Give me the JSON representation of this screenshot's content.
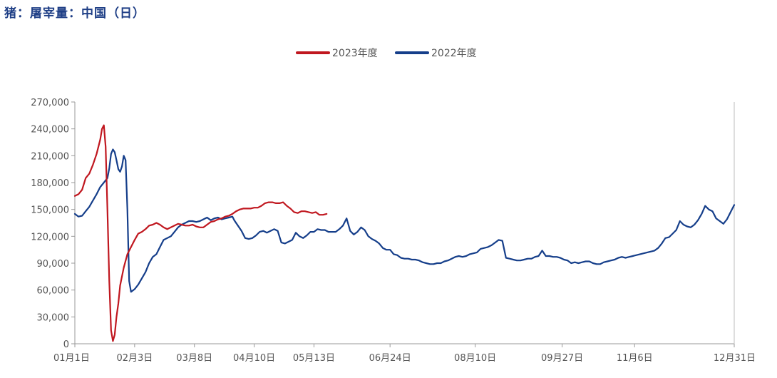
{
  "title": "猪：屠宰量：中国（日）",
  "chart_data": {
    "type": "line",
    "title": "猪：屠宰量：中国（日）",
    "ylim": [
      0,
      270000
    ],
    "y_ticks": [
      "0",
      "30,000",
      "60,000",
      "90,000",
      "120,000",
      "150,000",
      "180,000",
      "210,000",
      "240,000",
      "270,000"
    ],
    "y_tick_values": [
      0,
      30000,
      60000,
      90000,
      120000,
      150000,
      180000,
      210000,
      240000,
      270000
    ],
    "x_ticks": [
      {
        "label": "01月1日",
        "day": 0
      },
      {
        "label": "02月3日",
        "day": 33
      },
      {
        "label": "03月8日",
        "day": 66
      },
      {
        "label": "04月10日",
        "day": 99
      },
      {
        "label": "05月13日",
        "day": 132
      },
      {
        "label": "06月24日",
        "day": 174
      },
      {
        "label": "08月10日",
        "day": 221
      },
      {
        "label": "09月27日",
        "day": 269
      },
      {
        "label": "11月6日",
        "day": 309
      },
      {
        "label": "12月31日",
        "day": 364
      }
    ],
    "xlim": [
      0,
      364
    ],
    "legend_position": "top-center",
    "series": [
      {
        "name": "2023年度",
        "color": "#c0171f",
        "points": [
          [
            0,
            165000
          ],
          [
            2,
            167000
          ],
          [
            4,
            172000
          ],
          [
            6,
            185000
          ],
          [
            8,
            190000
          ],
          [
            10,
            200000
          ],
          [
            12,
            212000
          ],
          [
            14,
            228000
          ],
          [
            15,
            240000
          ],
          [
            16,
            244000
          ],
          [
            17,
            220000
          ],
          [
            18,
            150000
          ],
          [
            19,
            70000
          ],
          [
            20,
            15000
          ],
          [
            21,
            3000
          ],
          [
            22,
            10000
          ],
          [
            23,
            30000
          ],
          [
            24,
            45000
          ],
          [
            25,
            65000
          ],
          [
            27,
            85000
          ],
          [
            29,
            100000
          ],
          [
            31,
            108000
          ],
          [
            33,
            116000
          ],
          [
            35,
            123000
          ],
          [
            37,
            125000
          ],
          [
            39,
            128000
          ],
          [
            41,
            132000
          ],
          [
            43,
            133000
          ],
          [
            45,
            135000
          ],
          [
            47,
            133000
          ],
          [
            49,
            130000
          ],
          [
            51,
            128000
          ],
          [
            53,
            130000
          ],
          [
            55,
            132000
          ],
          [
            57,
            134000
          ],
          [
            59,
            133000
          ],
          [
            61,
            132000
          ],
          [
            63,
            132000
          ],
          [
            65,
            133000
          ],
          [
            67,
            131000
          ],
          [
            69,
            130000
          ],
          [
            71,
            130000
          ],
          [
            73,
            133000
          ],
          [
            75,
            136000
          ],
          [
            77,
            137000
          ],
          [
            79,
            139000
          ],
          [
            81,
            140000
          ],
          [
            83,
            142000
          ],
          [
            85,
            143000
          ],
          [
            87,
            145000
          ],
          [
            89,
            148000
          ],
          [
            91,
            150000
          ],
          [
            93,
            151000
          ],
          [
            95,
            151000
          ],
          [
            97,
            151000
          ],
          [
            99,
            152000
          ],
          [
            101,
            152000
          ],
          [
            103,
            154000
          ],
          [
            105,
            157000
          ],
          [
            107,
            158000
          ],
          [
            109,
            158000
          ],
          [
            111,
            157000
          ],
          [
            113,
            157000
          ],
          [
            115,
            158000
          ],
          [
            117,
            154000
          ],
          [
            119,
            151000
          ],
          [
            121,
            147000
          ],
          [
            123,
            146000
          ],
          [
            125,
            148000
          ],
          [
            127,
            148000
          ],
          [
            129,
            147000
          ],
          [
            131,
            146000
          ],
          [
            133,
            147000
          ],
          [
            135,
            144000
          ],
          [
            137,
            144000
          ],
          [
            139,
            145000
          ]
        ]
      },
      {
        "name": "2022年度",
        "color": "#153e8a",
        "points": [
          [
            0,
            145000
          ],
          [
            2,
            142000
          ],
          [
            4,
            143000
          ],
          [
            6,
            148000
          ],
          [
            8,
            153000
          ],
          [
            10,
            160000
          ],
          [
            12,
            167000
          ],
          [
            14,
            175000
          ],
          [
            16,
            180000
          ],
          [
            18,
            185000
          ],
          [
            19,
            196000
          ],
          [
            20,
            212000
          ],
          [
            21,
            217000
          ],
          [
            22,
            214000
          ],
          [
            23,
            205000
          ],
          [
            24,
            195000
          ],
          [
            25,
            192000
          ],
          [
            26,
            198000
          ],
          [
            27,
            210000
          ],
          [
            28,
            205000
          ],
          [
            29,
            150000
          ],
          [
            30,
            70000
          ],
          [
            31,
            58000
          ],
          [
            33,
            61000
          ],
          [
            35,
            66000
          ],
          [
            37,
            73000
          ],
          [
            39,
            80000
          ],
          [
            41,
            90000
          ],
          [
            43,
            97000
          ],
          [
            45,
            100000
          ],
          [
            47,
            108000
          ],
          [
            49,
            116000
          ],
          [
            51,
            118000
          ],
          [
            53,
            120000
          ],
          [
            55,
            125000
          ],
          [
            57,
            130000
          ],
          [
            59,
            133000
          ],
          [
            61,
            135000
          ],
          [
            63,
            137000
          ],
          [
            65,
            137000
          ],
          [
            67,
            136000
          ],
          [
            69,
            137000
          ],
          [
            71,
            139000
          ],
          [
            73,
            141000
          ],
          [
            75,
            138000
          ],
          [
            77,
            140000
          ],
          [
            79,
            141000
          ],
          [
            81,
            139000
          ],
          [
            83,
            140000
          ],
          [
            85,
            141000
          ],
          [
            87,
            142000
          ],
          [
            88,
            138000
          ],
          [
            90,
            132000
          ],
          [
            92,
            126000
          ],
          [
            94,
            118000
          ],
          [
            96,
            117000
          ],
          [
            98,
            118000
          ],
          [
            100,
            121000
          ],
          [
            102,
            125000
          ],
          [
            104,
            126000
          ],
          [
            106,
            124000
          ],
          [
            108,
            126000
          ],
          [
            110,
            128000
          ],
          [
            112,
            126000
          ],
          [
            114,
            113000
          ],
          [
            116,
            112000
          ],
          [
            118,
            114000
          ],
          [
            120,
            116000
          ],
          [
            122,
            124000
          ],
          [
            124,
            120000
          ],
          [
            126,
            118000
          ],
          [
            128,
            121000
          ],
          [
            130,
            125000
          ],
          [
            132,
            125000
          ],
          [
            134,
            128000
          ],
          [
            136,
            127000
          ],
          [
            138,
            127000
          ],
          [
            140,
            125000
          ],
          [
            142,
            125000
          ],
          [
            144,
            125000
          ],
          [
            146,
            128000
          ],
          [
            148,
            132000
          ],
          [
            150,
            140000
          ],
          [
            152,
            126000
          ],
          [
            154,
            122000
          ],
          [
            156,
            125000
          ],
          [
            158,
            130000
          ],
          [
            160,
            127000
          ],
          [
            162,
            120000
          ],
          [
            164,
            117000
          ],
          [
            166,
            115000
          ],
          [
            168,
            112000
          ],
          [
            170,
            107000
          ],
          [
            172,
            105000
          ],
          [
            174,
            105000
          ],
          [
            176,
            100000
          ],
          [
            178,
            99000
          ],
          [
            180,
            96000
          ],
          [
            182,
            95000
          ],
          [
            184,
            95000
          ],
          [
            186,
            94000
          ],
          [
            188,
            94000
          ],
          [
            190,
            93000
          ],
          [
            192,
            91000
          ],
          [
            194,
            90000
          ],
          [
            196,
            89000
          ],
          [
            198,
            89000
          ],
          [
            200,
            90000
          ],
          [
            202,
            90000
          ],
          [
            204,
            92000
          ],
          [
            206,
            93000
          ],
          [
            208,
            95000
          ],
          [
            210,
            97000
          ],
          [
            212,
            98000
          ],
          [
            214,
            97000
          ],
          [
            216,
            98000
          ],
          [
            218,
            100000
          ],
          [
            220,
            101000
          ],
          [
            222,
            102000
          ],
          [
            224,
            106000
          ],
          [
            226,
            107000
          ],
          [
            228,
            108000
          ],
          [
            230,
            110000
          ],
          [
            232,
            113000
          ],
          [
            234,
            116000
          ],
          [
            236,
            115000
          ],
          [
            238,
            96000
          ],
          [
            240,
            95000
          ],
          [
            242,
            94000
          ],
          [
            244,
            93000
          ],
          [
            246,
            93000
          ],
          [
            248,
            94000
          ],
          [
            250,
            95000
          ],
          [
            252,
            95000
          ],
          [
            254,
            97000
          ],
          [
            256,
            98000
          ],
          [
            258,
            104000
          ],
          [
            260,
            98000
          ],
          [
            262,
            98000
          ],
          [
            264,
            97000
          ],
          [
            266,
            97000
          ],
          [
            268,
            96000
          ],
          [
            270,
            94000
          ],
          [
            272,
            93000
          ],
          [
            274,
            90000
          ],
          [
            276,
            91000
          ],
          [
            278,
            90000
          ],
          [
            280,
            91000
          ],
          [
            282,
            92000
          ],
          [
            284,
            92000
          ],
          [
            286,
            90000
          ],
          [
            288,
            89000
          ],
          [
            290,
            89000
          ],
          [
            292,
            91000
          ],
          [
            294,
            92000
          ],
          [
            296,
            93000
          ],
          [
            298,
            94000
          ],
          [
            300,
            96000
          ],
          [
            302,
            97000
          ],
          [
            304,
            96000
          ],
          [
            306,
            97000
          ],
          [
            308,
            98000
          ],
          [
            310,
            99000
          ],
          [
            312,
            100000
          ],
          [
            314,
            101000
          ],
          [
            316,
            102000
          ],
          [
            318,
            103000
          ],
          [
            320,
            104000
          ],
          [
            322,
            107000
          ],
          [
            324,
            112000
          ],
          [
            326,
            118000
          ],
          [
            328,
            119000
          ],
          [
            330,
            123000
          ],
          [
            332,
            127000
          ],
          [
            334,
            137000
          ],
          [
            336,
            133000
          ],
          [
            338,
            131000
          ],
          [
            340,
            130000
          ],
          [
            342,
            133000
          ],
          [
            344,
            138000
          ],
          [
            346,
            145000
          ],
          [
            348,
            154000
          ],
          [
            350,
            150000
          ],
          [
            352,
            148000
          ],
          [
            354,
            140000
          ],
          [
            356,
            137000
          ],
          [
            358,
            134000
          ],
          [
            360,
            139000
          ],
          [
            362,
            147000
          ],
          [
            364,
            155000
          ]
        ]
      }
    ]
  }
}
